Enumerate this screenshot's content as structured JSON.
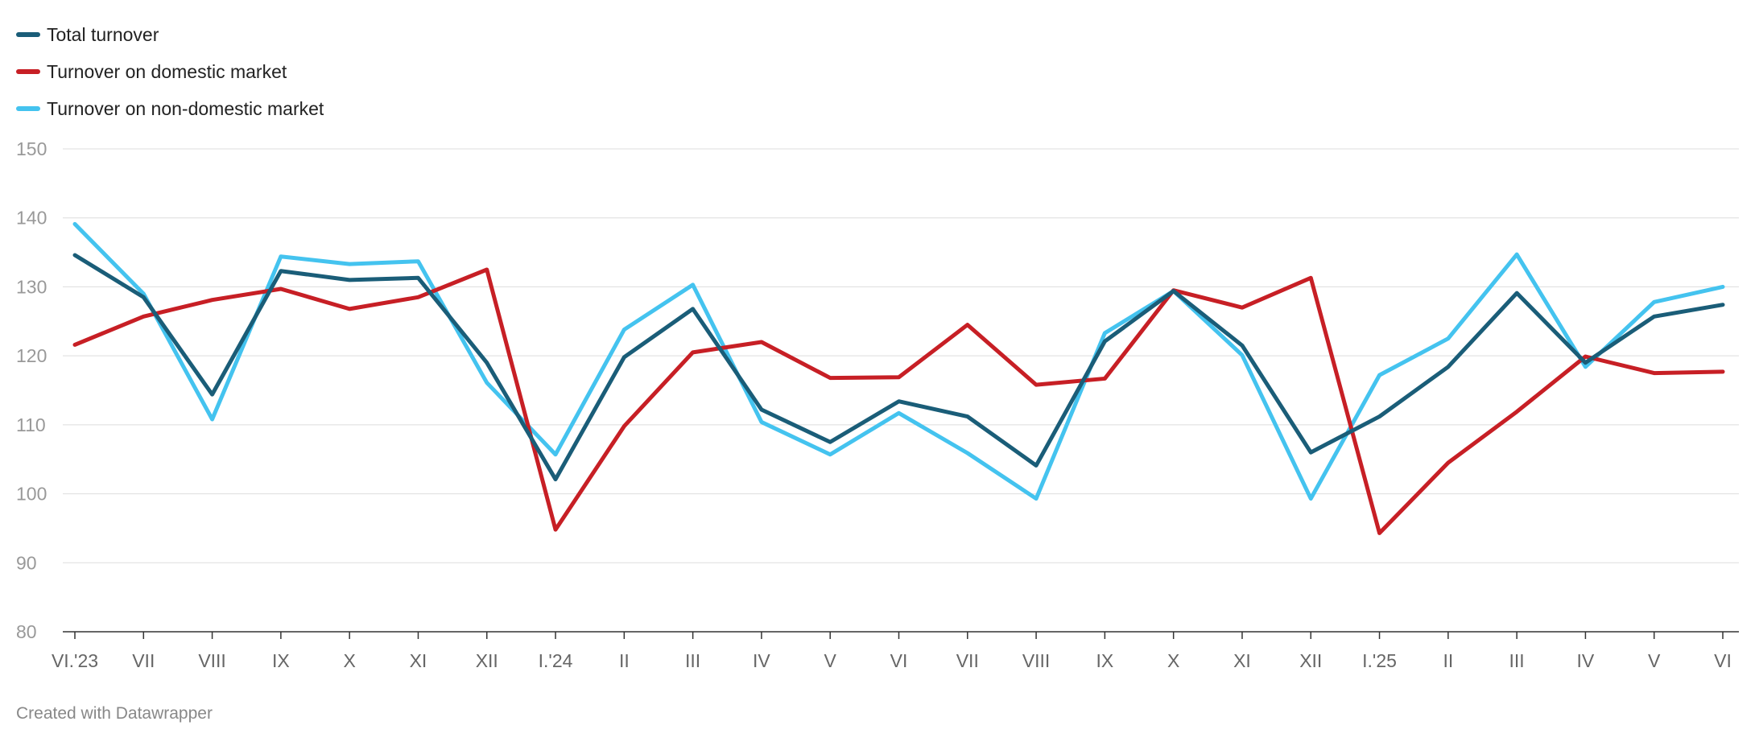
{
  "footer": "Created with Datawrapper",
  "chart_data": {
    "type": "line",
    "categories": [
      "VI.'23",
      "VII",
      "VIII",
      "IX",
      "X",
      "XI",
      "XII",
      "I.'24",
      "II",
      "III",
      "IV",
      "V",
      "VI",
      "VII",
      "VIII",
      "IX",
      "X",
      "XI",
      "XII",
      "I.'25",
      "II",
      "III",
      "IV",
      "V",
      "VI"
    ],
    "ylim": [
      80,
      150
    ],
    "yticks": [
      80,
      90,
      100,
      110,
      120,
      130,
      140,
      150
    ],
    "grid": true,
    "legend_position": "top-left",
    "series": [
      {
        "name": "Total turnover",
        "color": "#1a5d78",
        "values": [
          134.6,
          128.5,
          114.4,
          132.3,
          131.0,
          131.3,
          119.0,
          102.1,
          119.8,
          126.8,
          112.2,
          107.5,
          113.4,
          111.2,
          104.1,
          122.1,
          129.4,
          121.5,
          106.0,
          111.2,
          118.4,
          129.1,
          119.0,
          125.7,
          127.4
        ]
      },
      {
        "name": "Turnover on domestic market",
        "color": "#c71f25",
        "values": [
          121.6,
          125.7,
          128.1,
          129.7,
          126.8,
          128.5,
          132.5,
          94.8,
          109.8,
          120.5,
          122.0,
          116.8,
          116.9,
          124.5,
          115.8,
          116.7,
          129.5,
          127.0,
          131.3,
          94.3,
          104.5,
          111.9,
          119.9,
          117.5,
          117.7
        ]
      },
      {
        "name": "Turnover on non-domestic market",
        "color": "#44c3ef",
        "values": [
          139.1,
          129.0,
          110.8,
          134.4,
          133.3,
          133.7,
          116.1,
          105.7,
          123.8,
          130.3,
          110.4,
          105.7,
          111.7,
          105.9,
          99.3,
          123.3,
          129.4,
          120.1,
          99.3,
          117.2,
          122.5,
          134.7,
          118.4,
          127.8,
          130.0
        ]
      }
    ]
  }
}
